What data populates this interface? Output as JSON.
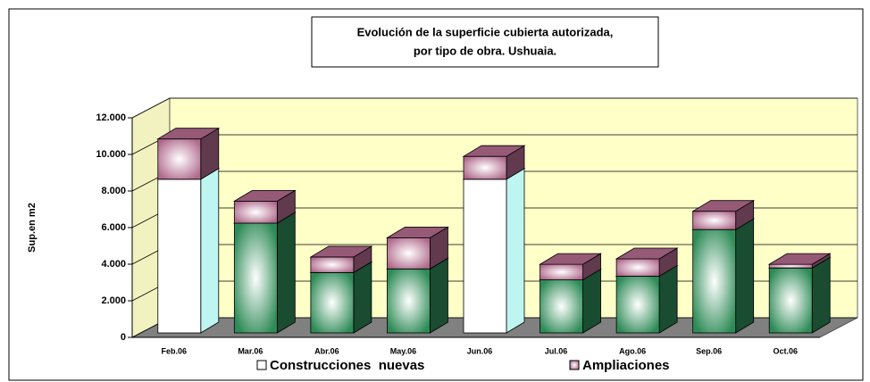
{
  "chart_data": {
    "type": "bar3d_stacked",
    "title": [
      "Evolución de la superficie cubierta autorizada,",
      "por tipo de obra. Ushuaia."
    ],
    "y_label": "Sup.en m2",
    "categories": [
      "Feb.06",
      "Mar.06",
      "Abr.06",
      "May.06",
      "Jun.06",
      "Jul.06",
      "Ago.06",
      "Sep.06",
      "Oct.06"
    ],
    "series": [
      {
        "name": "Construcciones  nuevas",
        "color": "#2e8b57",
        "point_colors": [
          "#ffffff",
          "#2e8b57",
          "#2e8b57",
          "#2e8b57",
          "#ffffff",
          "#2e8b57",
          "#2e8b57",
          "#2e8b57",
          "#2e8b57"
        ],
        "values": [
          8400,
          6000,
          3300,
          3500,
          8400,
          2900,
          3100,
          5650,
          3550
        ]
      },
      {
        "name": "Ampliaciones",
        "color": "#b06a8c",
        "values": [
          2200,
          1200,
          850,
          1700,
          1250,
          850,
          950,
          1000,
          200
        ]
      }
    ],
    "ylim": [
      0,
      12000
    ],
    "yticks": [
      0,
      {
        "value": 2000,
        "label": "2.000"
      },
      {
        "value": 4000,
        "label": "4.000"
      },
      {
        "value": 6000,
        "label": "6.000"
      },
      {
        "value": 8000,
        "label": "8.000"
      },
      {
        "value": 10000,
        "label": "10.000"
      },
      {
        "value": 12000,
        "label": "12.000"
      }
    ],
    "grid": true,
    "legend": "bottom"
  }
}
